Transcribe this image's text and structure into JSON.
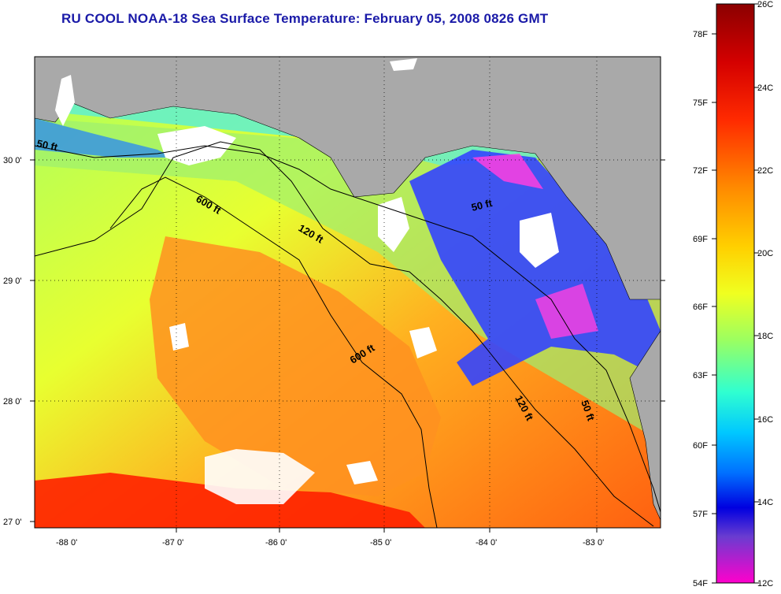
{
  "title": "RU COOL  NOAA-18  Sea Surface Temperature:  February 05, 2008 0826 GMT",
  "map": {
    "lat_labels": [
      "30 0'",
      "29 0'",
      "28 0'",
      "27 0'"
    ],
    "lon_labels": [
      "-88 0'",
      "-87 0'",
      "-86 0'",
      "-85 0'",
      "-84 0'",
      "-83 0'"
    ],
    "contour_labels": [
      "50 ft",
      "600 ft",
      "120 ft",
      "50 ft",
      "600 ft",
      "120 ft",
      "50 ft"
    ],
    "colors": {
      "land": "#a9a9a9",
      "cloud": "#ffffff",
      "warm": "#ff3300",
      "cold": "#1a1aff"
    }
  },
  "colorbar": {
    "fahrenheit_labels": [
      "78F",
      "75F",
      "72F",
      "69F",
      "66F",
      "63F",
      "60F",
      "57F",
      "54F"
    ],
    "celsius_labels": [
      "26C",
      "24C",
      "22C",
      "20C",
      "18C",
      "16C",
      "14C",
      "12C"
    ]
  }
}
